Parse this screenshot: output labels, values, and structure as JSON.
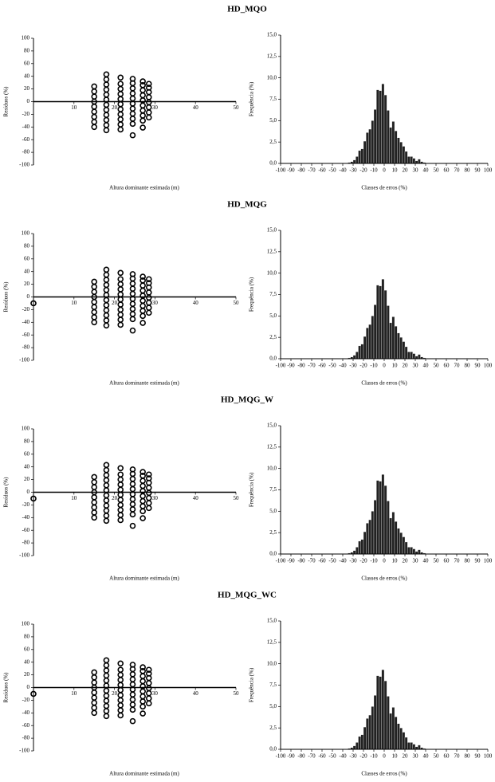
{
  "chart_data": [
    {
      "type": "scatter",
      "title": "HD_MQO",
      "xlabel": "Altura dominante estimada (m)",
      "ylabel": "Resíduos (%)",
      "x": [
        15,
        15,
        15,
        15,
        15,
        15,
        15,
        15,
        15,
        18,
        18,
        18,
        18,
        18,
        18,
        18,
        18,
        18,
        18,
        18,
        18,
        21.5,
        21.5,
        21.5,
        21.5,
        21.5,
        21.5,
        21.5,
        21.5,
        21.5,
        21.5,
        21.5,
        24.5,
        24.5,
        24.5,
        24.5,
        24.5,
        24.5,
        24.5,
        24.5,
        24.5,
        24.5,
        24.5,
        27,
        27,
        27,
        27,
        27,
        27,
        27,
        27,
        27,
        27,
        28.5,
        28.5,
        28.5,
        28.5,
        28.5,
        28.5,
        28.5,
        28.5
      ],
      "y": [
        -40,
        -32,
        -24,
        -16,
        -8,
        0,
        8,
        16,
        24,
        -45,
        -37,
        -29,
        -21,
        -13,
        -5,
        3,
        11,
        19,
        27,
        35,
        43,
        -44,
        -36,
        -28,
        -20,
        -12,
        -4,
        4,
        12,
        20,
        28,
        38,
        -53,
        -35,
        -27,
        -19,
        -11,
        -3,
        5,
        13,
        21,
        29,
        36,
        -41,
        -30,
        -22,
        -14,
        -6,
        2,
        10,
        18,
        26,
        32,
        -25,
        -17,
        -9,
        -1,
        7,
        15,
        22,
        28
      ],
      "xlim": [
        0,
        50
      ],
      "xticks": [
        10,
        20,
        30,
        40,
        50
      ],
      "ylim": [
        -100,
        100
      ],
      "yticks": [
        -100,
        -80,
        -60,
        -40,
        -20,
        0,
        20,
        40,
        60,
        80,
        100
      ],
      "color": "#000000"
    },
    {
      "type": "histogram",
      "xlabel": "Classes de erros (%)",
      "ylabel": "Frequência (%)",
      "bins": [
        -35,
        -32.5,
        -30,
        -27.5,
        -25,
        -22.5,
        -20,
        -17.5,
        -15,
        -12.5,
        -10,
        -7.5,
        -5,
        -2.5,
        0,
        2.5,
        5,
        7.5,
        10,
        12.5,
        15,
        17.5,
        20,
        22.5,
        25,
        27.5,
        30,
        32.5,
        35,
        37.5,
        40
      ],
      "values": [
        0.1,
        0.2,
        0.4,
        0.8,
        1.5,
        1.7,
        2.6,
        3.6,
        4.0,
        5.0,
        6.3,
        8.6,
        8.5,
        9.3,
        8.0,
        6.2,
        4.2,
        4.9,
        3.8,
        3.0,
        2.5,
        2.0,
        1.4,
        0.8,
        0.8,
        0.6,
        0.3,
        0.5,
        0.2,
        0.1
      ],
      "xlim": [
        -100,
        100
      ],
      "xticks": [
        -100,
        -90,
        -80,
        -70,
        -60,
        -50,
        -40,
        -30,
        -20,
        -10,
        0,
        10,
        20,
        30,
        40,
        50,
        60,
        70,
        80,
        90,
        100
      ],
      "ylim": [
        0,
        15
      ],
      "yticks": [
        {
          "value": 0,
          "label": "0,0"
        },
        {
          "value": 2.5,
          "label": "2,5"
        },
        {
          "value": 5,
          "label": "5,0"
        },
        {
          "value": 7.5,
          "label": "7,5"
        },
        {
          "value": 10,
          "label": "10,0"
        },
        {
          "value": 12.5,
          "label": "12,5"
        },
        {
          "value": 15,
          "label": "15,0"
        }
      ],
      "color": "#222222"
    },
    {
      "type": "scatter",
      "title": "HD_MQG",
      "xlabel": "Altura dominante estimada (m)",
      "ylabel": "Resíduos (%)",
      "x": [
        0,
        15,
        15,
        15,
        15,
        15,
        15,
        15,
        15,
        15,
        18,
        18,
        18,
        18,
        18,
        18,
        18,
        18,
        18,
        18,
        18,
        18,
        21.5,
        21.5,
        21.5,
        21.5,
        21.5,
        21.5,
        21.5,
        21.5,
        21.5,
        21.5,
        21.5,
        24.5,
        24.5,
        24.5,
        24.5,
        24.5,
        24.5,
        24.5,
        24.5,
        24.5,
        24.5,
        24.5,
        27,
        27,
        27,
        27,
        27,
        27,
        27,
        27,
        27,
        27,
        28.5,
        28.5,
        28.5,
        28.5,
        28.5,
        28.5,
        28.5,
        28.5
      ],
      "y": [
        -10,
        -40,
        -32,
        -24,
        -16,
        -8,
        0,
        8,
        16,
        24,
        -45,
        -37,
        -29,
        -21,
        -13,
        -5,
        3,
        11,
        19,
        27,
        35,
        43,
        -44,
        -36,
        -28,
        -20,
        -12,
        -4,
        4,
        12,
        20,
        28,
        38,
        -53,
        -35,
        -27,
        -19,
        -11,
        -3,
        5,
        13,
        21,
        29,
        36,
        -41,
        -30,
        -22,
        -14,
        -6,
        2,
        10,
        18,
        26,
        32,
        -25,
        -17,
        -9,
        -1,
        7,
        15,
        22,
        28
      ],
      "xlim": [
        0,
        50
      ],
      "xticks": [
        10,
        20,
        30,
        40,
        50
      ],
      "ylim": [
        -100,
        100
      ],
      "yticks": [
        -100,
        -80,
        -60,
        -40,
        -20,
        0,
        20,
        40,
        60,
        80,
        100
      ],
      "color": "#000000"
    },
    {
      "type": "histogram",
      "xlabel": "Classes de erros (%)",
      "ylabel": "Frequência (%)",
      "bins": [
        -35,
        -32.5,
        -30,
        -27.5,
        -25,
        -22.5,
        -20,
        -17.5,
        -15,
        -12.5,
        -10,
        -7.5,
        -5,
        -2.5,
        0,
        2.5,
        5,
        7.5,
        10,
        12.5,
        15,
        17.5,
        20,
        22.5,
        25,
        27.5,
        30,
        32.5,
        35,
        37.5,
        40
      ],
      "values": [
        0.1,
        0.2,
        0.4,
        0.8,
        1.5,
        1.7,
        2.6,
        3.6,
        4.0,
        5.0,
        6.3,
        8.6,
        8.5,
        9.3,
        8.0,
        6.2,
        4.2,
        4.9,
        3.8,
        3.0,
        2.5,
        2.0,
        1.4,
        0.8,
        0.8,
        0.6,
        0.3,
        0.5,
        0.2,
        0.1
      ],
      "xlim": [
        -100,
        100
      ],
      "xticks": [
        -100,
        -90,
        -80,
        -70,
        -60,
        -50,
        -40,
        -30,
        -20,
        -10,
        0,
        10,
        20,
        30,
        40,
        50,
        60,
        70,
        80,
        90,
        100
      ],
      "ylim": [
        0,
        15
      ],
      "yticks": [
        {
          "value": 0,
          "label": "0,0"
        },
        {
          "value": 2.5,
          "label": "2,5"
        },
        {
          "value": 5,
          "label": "5,0"
        },
        {
          "value": 7.5,
          "label": "7,5"
        },
        {
          "value": 10,
          "label": "10,0"
        },
        {
          "value": 12.5,
          "label": "12,5"
        },
        {
          "value": 15,
          "label": "15,0"
        }
      ],
      "color": "#222222"
    },
    {
      "type": "scatter",
      "title": "HD_MQG_W",
      "xlabel": "Altura dominante estimada (m)",
      "ylabel": "Resíduos (%)",
      "x": [
        0,
        15,
        15,
        15,
        15,
        15,
        15,
        15,
        15,
        15,
        18,
        18,
        18,
        18,
        18,
        18,
        18,
        18,
        18,
        18,
        18,
        18,
        21.5,
        21.5,
        21.5,
        21.5,
        21.5,
        21.5,
        21.5,
        21.5,
        21.5,
        21.5,
        21.5,
        24.5,
        24.5,
        24.5,
        24.5,
        24.5,
        24.5,
        24.5,
        24.5,
        24.5,
        24.5,
        24.5,
        27,
        27,
        27,
        27,
        27,
        27,
        27,
        27,
        27,
        27,
        28.5,
        28.5,
        28.5,
        28.5,
        28.5,
        28.5,
        28.5,
        28.5
      ],
      "y": [
        -10,
        -40,
        -32,
        -24,
        -16,
        -8,
        0,
        8,
        16,
        24,
        -45,
        -37,
        -29,
        -21,
        -13,
        -5,
        3,
        11,
        19,
        27,
        35,
        43,
        -44,
        -36,
        -28,
        -20,
        -12,
        -4,
        4,
        12,
        20,
        28,
        38,
        -53,
        -35,
        -27,
        -19,
        -11,
        -3,
        5,
        13,
        21,
        29,
        36,
        -41,
        -30,
        -22,
        -14,
        -6,
        2,
        10,
        18,
        26,
        32,
        -25,
        -17,
        -9,
        -1,
        7,
        15,
        22,
        28
      ],
      "xlim": [
        0,
        50
      ],
      "xticks": [
        10,
        20,
        30,
        40,
        50
      ],
      "ylim": [
        -100,
        100
      ],
      "yticks": [
        -100,
        -80,
        -60,
        -40,
        -20,
        0,
        20,
        40,
        60,
        80,
        100
      ],
      "color": "#000000"
    },
    {
      "type": "histogram",
      "xlabel": "Classes de erros (%)",
      "ylabel": "Frequência (%)",
      "bins": [
        -35,
        -32.5,
        -30,
        -27.5,
        -25,
        -22.5,
        -20,
        -17.5,
        -15,
        -12.5,
        -10,
        -7.5,
        -5,
        -2.5,
        0,
        2.5,
        5,
        7.5,
        10,
        12.5,
        15,
        17.5,
        20,
        22.5,
        25,
        27.5,
        30,
        32.5,
        35,
        37.5,
        40
      ],
      "values": [
        0.1,
        0.2,
        0.4,
        0.8,
        1.5,
        1.7,
        2.6,
        3.6,
        4.0,
        5.0,
        6.3,
        8.6,
        8.5,
        9.3,
        8.0,
        6.2,
        4.2,
        4.9,
        3.8,
        3.0,
        2.5,
        2.0,
        1.4,
        0.8,
        0.8,
        0.6,
        0.3,
        0.5,
        0.2,
        0.1
      ],
      "xlim": [
        -100,
        100
      ],
      "xticks": [
        -100,
        -90,
        -80,
        -70,
        -60,
        -50,
        -40,
        -30,
        -20,
        -10,
        0,
        10,
        20,
        30,
        40,
        50,
        60,
        70,
        80,
        90,
        100
      ],
      "ylim": [
        0,
        15
      ],
      "yticks": [
        {
          "value": 0,
          "label": "0,0"
        },
        {
          "value": 2.5,
          "label": "2,5"
        },
        {
          "value": 5,
          "label": "5,0"
        },
        {
          "value": 7.5,
          "label": "7,5"
        },
        {
          "value": 10,
          "label": "10,0"
        },
        {
          "value": 12.5,
          "label": "12,5"
        },
        {
          "value": 15,
          "label": "15,0"
        }
      ],
      "color": "#222222"
    },
    {
      "type": "scatter",
      "title": "HD_MQG_WC",
      "xlabel": "Altura dominante estimada (m)",
      "ylabel": "Resíduos (%)",
      "x": [
        0,
        15,
        15,
        15,
        15,
        15,
        15,
        15,
        15,
        15,
        18,
        18,
        18,
        18,
        18,
        18,
        18,
        18,
        18,
        18,
        18,
        18,
        21.5,
        21.5,
        21.5,
        21.5,
        21.5,
        21.5,
        21.5,
        21.5,
        21.5,
        21.5,
        21.5,
        24.5,
        24.5,
        24.5,
        24.5,
        24.5,
        24.5,
        24.5,
        24.5,
        24.5,
        24.5,
        24.5,
        27,
        27,
        27,
        27,
        27,
        27,
        27,
        27,
        27,
        27,
        28.5,
        28.5,
        28.5,
        28.5,
        28.5,
        28.5,
        28.5,
        28.5
      ],
      "y": [
        -10,
        -40,
        -32,
        -24,
        -16,
        -8,
        0,
        8,
        16,
        24,
        -45,
        -37,
        -29,
        -21,
        -13,
        -5,
        3,
        11,
        19,
        27,
        35,
        43,
        -44,
        -36,
        -28,
        -20,
        -12,
        -4,
        4,
        12,
        20,
        28,
        38,
        -53,
        -35,
        -27,
        -19,
        -11,
        -3,
        5,
        13,
        21,
        29,
        36,
        -41,
        -30,
        -22,
        -14,
        -6,
        2,
        10,
        18,
        26,
        32,
        -25,
        -17,
        -9,
        -1,
        7,
        15,
        22,
        28
      ],
      "xlim": [
        0,
        50
      ],
      "xticks": [
        10,
        20,
        30,
        40,
        50
      ],
      "ylim": [
        -100,
        100
      ],
      "yticks": [
        -100,
        -80,
        -60,
        -40,
        -20,
        0,
        20,
        40,
        60,
        80,
        100
      ],
      "color": "#000000"
    },
    {
      "type": "histogram",
      "xlabel": "Classes de erros (%)",
      "ylabel": "Frequência (%)",
      "bins": [
        -35,
        -32.5,
        -30,
        -27.5,
        -25,
        -22.5,
        -20,
        -17.5,
        -15,
        -12.5,
        -10,
        -7.5,
        -5,
        -2.5,
        0,
        2.5,
        5,
        7.5,
        10,
        12.5,
        15,
        17.5,
        20,
        22.5,
        25,
        27.5,
        30,
        32.5,
        35,
        37.5,
        40
      ],
      "values": [
        0.1,
        0.2,
        0.4,
        0.8,
        1.5,
        1.7,
        2.6,
        3.6,
        4.0,
        5.0,
        6.3,
        8.6,
        8.5,
        9.3,
        8.0,
        6.2,
        4.2,
        4.9,
        3.8,
        3.0,
        2.5,
        2.0,
        1.4,
        0.8,
        0.8,
        0.6,
        0.3,
        0.5,
        0.2,
        0.1
      ],
      "xlim": [
        -100,
        100
      ],
      "xticks": [
        -100,
        -90,
        -80,
        -70,
        -60,
        -50,
        -40,
        -30,
        -20,
        -10,
        0,
        10,
        20,
        30,
        40,
        50,
        60,
        70,
        80,
        90,
        100
      ],
      "ylim": [
        0,
        15
      ],
      "yticks": [
        {
          "value": 0,
          "label": "0,0"
        },
        {
          "value": 2.5,
          "label": "2,5"
        },
        {
          "value": 5,
          "label": "5,0"
        },
        {
          "value": 7.5,
          "label": "7,5"
        },
        {
          "value": 10,
          "label": "10,0"
        },
        {
          "value": 12.5,
          "label": "12,5"
        },
        {
          "value": 15,
          "label": "15,0"
        }
      ],
      "color": "#222222"
    }
  ]
}
